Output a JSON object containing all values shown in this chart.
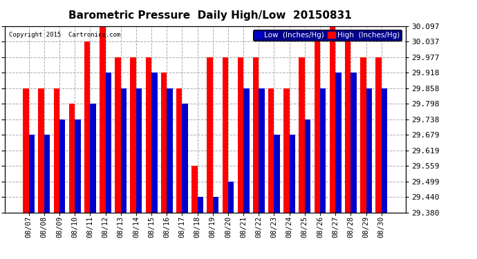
{
  "title": "Barometric Pressure  Daily High/Low  20150831",
  "copyright": "Copyright 2015  Cartronics.com",
  "legend_low": "Low  (Inches/Hg)",
  "legend_high": "High  (Inches/Hg)",
  "background_color": "#ffffff",
  "plot_bg_color": "#ffffff",
  "bar_color_low": "#0000cc",
  "bar_color_high": "#ff0000",
  "legend_bg_color": "#00008b",
  "ylim_min": 29.38,
  "ylim_max": 30.097,
  "yticks": [
    29.38,
    29.44,
    29.499,
    29.559,
    29.619,
    29.679,
    29.738,
    29.798,
    29.858,
    29.918,
    29.977,
    30.037,
    30.097
  ],
  "dates": [
    "08/07",
    "08/08",
    "08/09",
    "08/10",
    "08/11",
    "08/12",
    "08/13",
    "08/14",
    "08/15",
    "08/16",
    "08/17",
    "08/18",
    "08/19",
    "08/20",
    "08/21",
    "08/22",
    "08/23",
    "08/24",
    "08/25",
    "08/26",
    "08/27",
    "08/28",
    "08/29",
    "08/30"
  ],
  "high_values": [
    29.858,
    29.858,
    29.858,
    29.798,
    30.037,
    30.097,
    29.977,
    29.977,
    29.977,
    29.918,
    29.858,
    29.559,
    29.977,
    29.977,
    29.977,
    29.977,
    29.858,
    29.858,
    29.977,
    30.037,
    30.097,
    30.037,
    29.977,
    29.977
  ],
  "low_values": [
    29.679,
    29.679,
    29.738,
    29.738,
    29.798,
    29.918,
    29.858,
    29.858,
    29.918,
    29.858,
    29.798,
    29.44,
    29.44,
    29.499,
    29.858,
    29.858,
    29.679,
    29.679,
    29.738,
    29.858,
    29.918,
    29.918,
    29.858,
    29.858
  ]
}
